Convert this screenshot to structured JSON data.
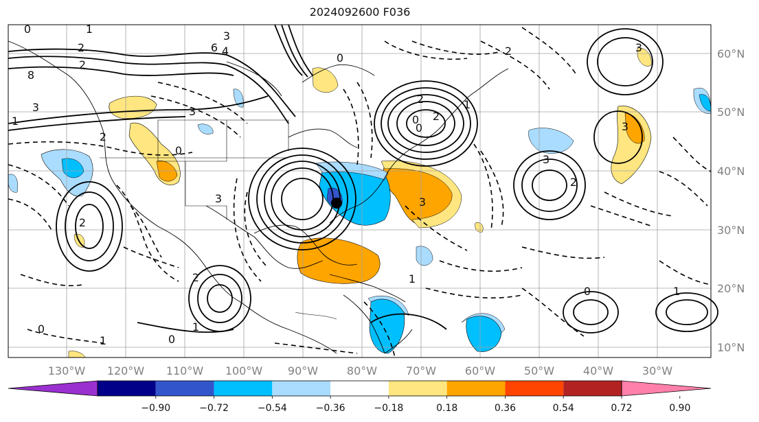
{
  "title": "2024092600 F036",
  "map": {
    "lon_labels": [
      "130°W",
      "120°W",
      "110°W",
      "100°W",
      "90°W",
      "80°W",
      "70°W",
      "60°W",
      "50°W",
      "40°W",
      "30°W"
    ],
    "lat_labels": [
      "60°N",
      "50°N",
      "40°N",
      "30°N",
      "20°N",
      "10°N"
    ],
    "gridline_color": "#a0a0a0",
    "contour_labels": [
      "0",
      "1",
      "2",
      "3",
      "4",
      "6",
      "8",
      "0",
      "2",
      "3",
      "1",
      "2",
      "3",
      "2",
      "0",
      "3",
      "2",
      "2",
      "0",
      "1",
      "0",
      "1",
      "0",
      "2",
      "3",
      "3",
      "0",
      "1",
      "1",
      "2",
      "2",
      "3",
      "0",
      "1",
      "3"
    ]
  },
  "colorbar": {
    "ticks": [
      "−0.90",
      "−0.72",
      "−0.54",
      "−0.36",
      "−0.18",
      "0.18",
      "0.36",
      "0.54",
      "0.72",
      "0.90"
    ],
    "colors": [
      "#9b30d0",
      "#000088",
      "#3355cc",
      "#00bfff",
      "#aadcff",
      "#ffffff",
      "#ffe680",
      "#ffa500",
      "#ff4500",
      "#b22222",
      "#ff80aa"
    ]
  }
}
